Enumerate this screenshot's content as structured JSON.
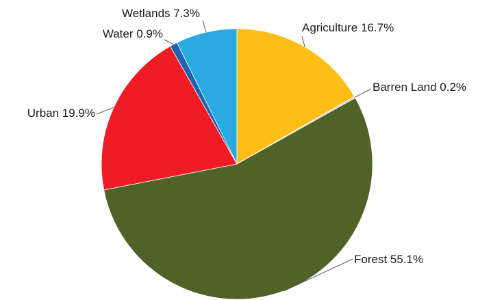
{
  "chart_data": {
    "type": "pie",
    "start": "12 o'clock",
    "direction": "clockwise",
    "slices": [
      {
        "label": "Agriculture 16.7%",
        "category": "Agriculture",
        "value": 16.7,
        "color": "#FDBE18"
      },
      {
        "label": "Barren Land 0.2%",
        "category": "Barren Land",
        "value": 0.2,
        "color": "#C9C9C9"
      },
      {
        "label": "Forest 55.1%",
        "category": "Forest",
        "value": 55.1,
        "color": "#4F6228"
      },
      {
        "label": "Urban 19.9%",
        "category": "Urban",
        "value": 19.9,
        "color": "#EE1C25"
      },
      {
        "label": "Water 0.9%",
        "category": "Water",
        "value": 0.9,
        "color": "#1C63B0"
      },
      {
        "label": "Wetlands 7.3%",
        "category": "Wetlands",
        "value": 7.3,
        "color": "#29ABE2"
      }
    ],
    "legend": "none"
  }
}
